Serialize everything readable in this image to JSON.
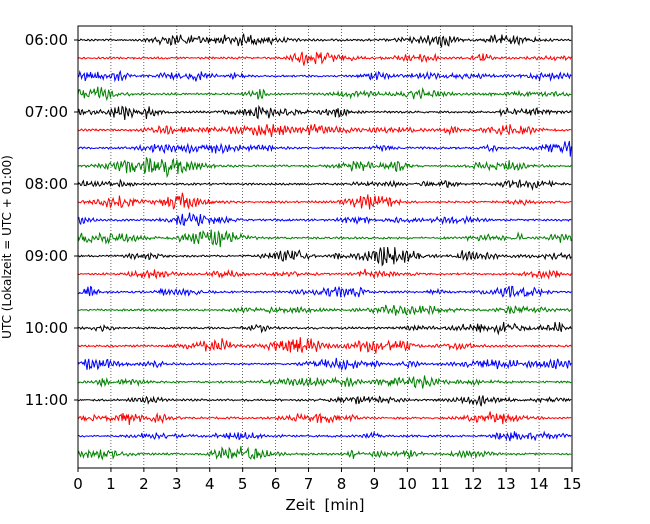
{
  "chart_data": {
    "type": "line",
    "title": "",
    "xlabel": "Zeit  [min]",
    "ylabel": "UTC (Lokalzeit = UTC + 01:00)",
    "xlim": [
      0,
      15
    ],
    "x_ticks": [
      0,
      1,
      2,
      3,
      4,
      5,
      6,
      7,
      8,
      9,
      10,
      11,
      12,
      13,
      14,
      15
    ],
    "grid": "vertical dotted",
    "legend": "none",
    "y_tick_labels": [
      "06:00",
      "07:00",
      "08:00",
      "09:00",
      "10:00",
      "11:00"
    ],
    "trace_interval_min": 15,
    "trace_start": "06:00",
    "trace_colors": [
      "#000000",
      "#ff0000",
      "#0000ff",
      "#008000"
    ],
    "traces": [
      {
        "start": "06:00"
      },
      {
        "start": "06:15"
      },
      {
        "start": "06:30"
      },
      {
        "start": "06:45"
      },
      {
        "start": "07:00"
      },
      {
        "start": "07:15"
      },
      {
        "start": "07:30"
      },
      {
        "start": "07:45"
      },
      {
        "start": "08:00"
      },
      {
        "start": "08:15"
      },
      {
        "start": "08:30"
      },
      {
        "start": "08:45"
      },
      {
        "start": "09:00"
      },
      {
        "start": "09:15"
      },
      {
        "start": "09:30"
      },
      {
        "start": "09:45"
      },
      {
        "start": "10:00"
      },
      {
        "start": "10:15"
      },
      {
        "start": "10:30"
      },
      {
        "start": "10:45"
      },
      {
        "start": "11:00"
      },
      {
        "start": "11:15"
      },
      {
        "start": "11:30"
      },
      {
        "start": "11:45"
      }
    ]
  }
}
